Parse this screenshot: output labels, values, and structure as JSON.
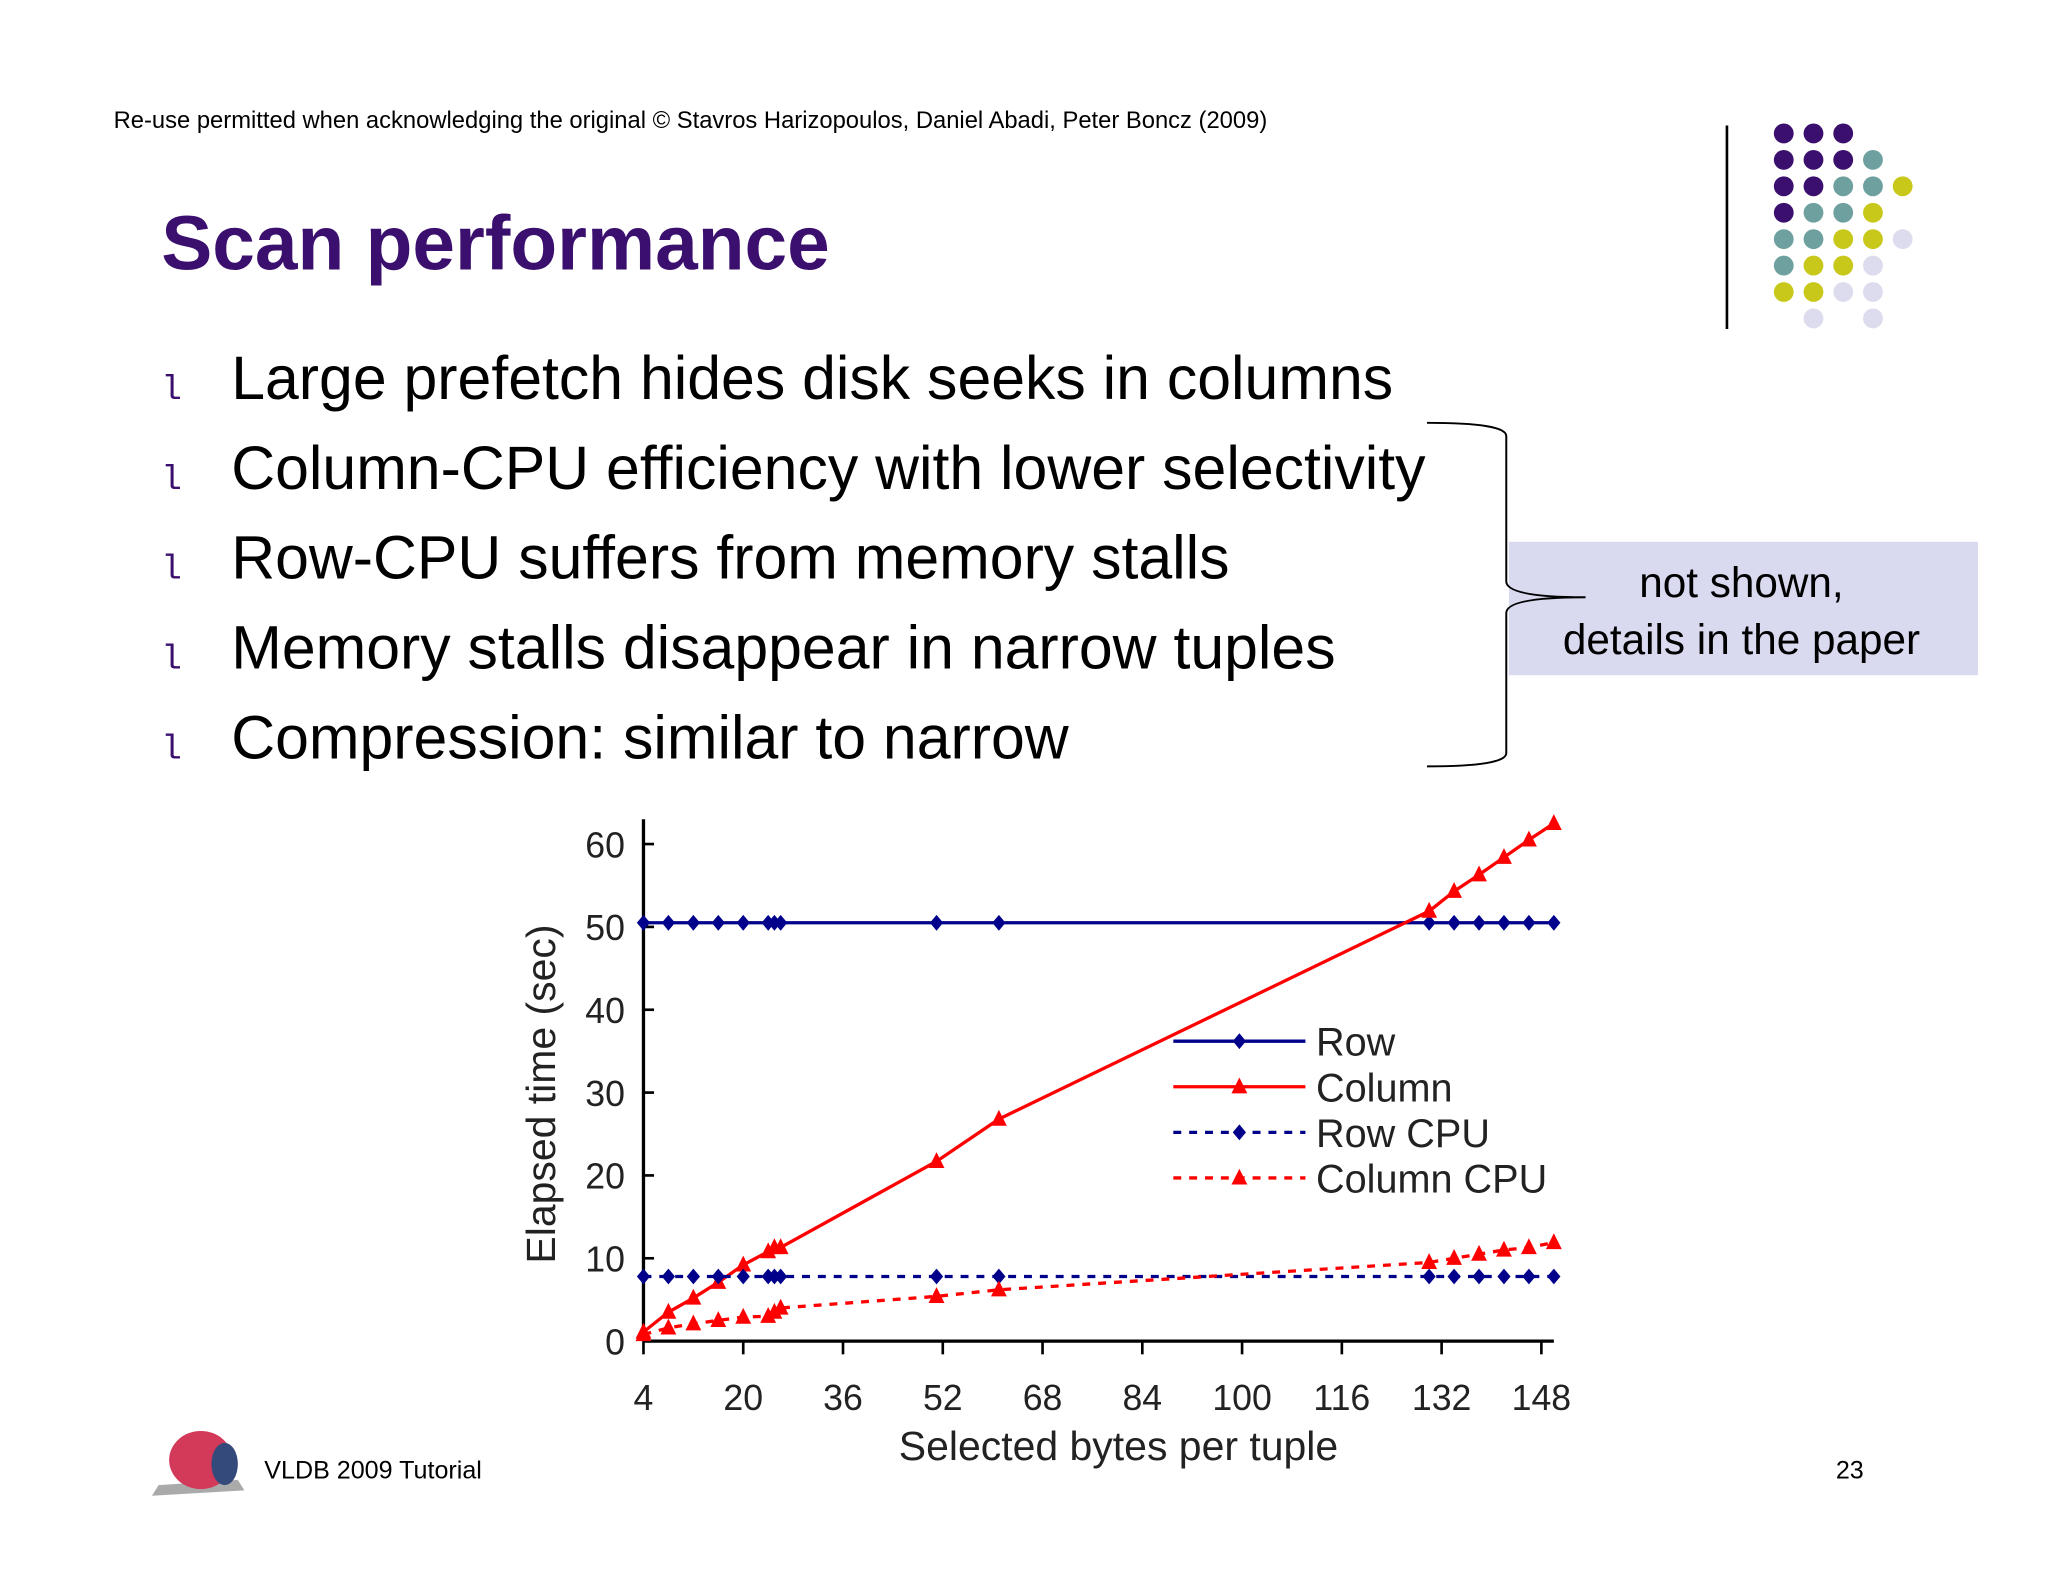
{
  "header": {
    "copyright": "Re-use permitted when acknowledging the original © Stavros Harizopoulos, Daniel Abadi, Peter Boncz (2009)",
    "title": "Scan performance"
  },
  "bullet_marker": "l",
  "bullets": [
    "Large prefetch hides disk seeks in columns",
    "Column-CPU efficiency with lower selectivity",
    "Row-CPU suffers from memory stalls",
    "Memory stalls disappear in narrow tuples",
    "Compression: similar to narrow"
  ],
  "callout": [
    "not shown,",
    "details in the paper"
  ],
  "footer": {
    "left": "VLDB 2009 Tutorial",
    "page": "23"
  },
  "chart_data": {
    "type": "line",
    "xlabel": "Selected bytes per tuple",
    "ylabel": "Elapsed time (sec)",
    "x": [
      4,
      8,
      12,
      16,
      20,
      24,
      25,
      26,
      51,
      61,
      130,
      134,
      138,
      142,
      146,
      150
    ],
    "series": [
      {
        "name": "Row",
        "color": "#00008b",
        "marker": "diamond",
        "dashed": false,
        "values": [
          50.5,
          50.5,
          50.5,
          50.5,
          50.5,
          50.5,
          50.5,
          50.5,
          50.5,
          50.5,
          50.5,
          50.5,
          50.5,
          50.5,
          50.5,
          50.5
        ]
      },
      {
        "name": "Column",
        "color": "#ff0000",
        "marker": "triangle",
        "dashed": false,
        "values": [
          1.1,
          3.5,
          5.2,
          7.1,
          9.2,
          10.8,
          11.3,
          11.3,
          21.7,
          26.8,
          51.9,
          54.3,
          56.3,
          58.4,
          60.5,
          62.5
        ]
      },
      {
        "name": "Row CPU",
        "color": "#00008b",
        "marker": "diamond",
        "dashed": true,
        "values": [
          7.8,
          7.8,
          7.8,
          7.8,
          7.8,
          7.8,
          7.8,
          7.8,
          7.8,
          7.8,
          7.8,
          7.8,
          7.8,
          7.8,
          7.8,
          7.8
        ]
      },
      {
        "name": "Column CPU",
        "color": "#ff0000",
        "marker": "triangle",
        "dashed": true,
        "values": [
          0.8,
          1.6,
          2.1,
          2.5,
          2.9,
          3.0,
          3.5,
          4.0,
          5.4,
          6.2,
          9.5,
          10.0,
          10.5,
          11.0,
          11.3,
          11.9
        ]
      }
    ],
    "xlim": [
      4,
      150
    ],
    "ylim": [
      0,
      63
    ],
    "xticks": [
      4,
      20,
      36,
      52,
      68,
      84,
      100,
      116,
      132,
      148
    ],
    "yticks": [
      0,
      10,
      20,
      30,
      40,
      50,
      60
    ]
  }
}
